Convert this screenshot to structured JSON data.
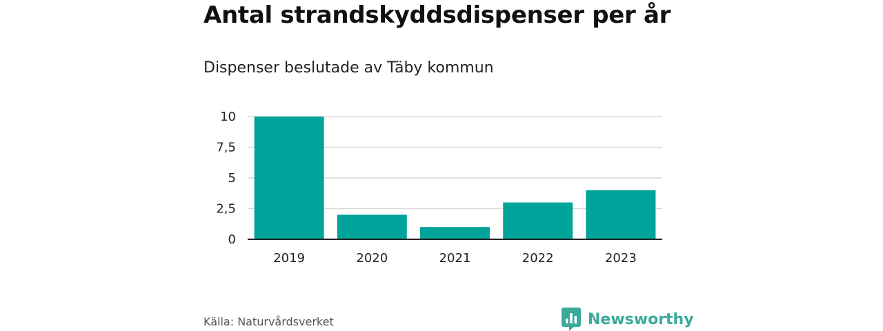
{
  "header": {
    "title": "Antal strandskyddsdispenser per år",
    "subtitle": "Dispenser beslutade av Täby kommun"
  },
  "footer": {
    "source": "Källa: Naturvårdsverket",
    "brand_name": "Newsworthy",
    "brand_icon": "newsworthy-logo-icon"
  },
  "colors": {
    "bar": "#00A49A",
    "brand": "#3AAA9B",
    "grid": "#d9d9d9",
    "axis": "#222222"
  },
  "chart_data": {
    "type": "bar",
    "title": "Antal strandskyddsdispenser per år",
    "subtitle": "Dispenser beslutade av Täby kommun",
    "categories": [
      "2019",
      "2020",
      "2021",
      "2022",
      "2023"
    ],
    "values": [
      10,
      2,
      1,
      3,
      4
    ],
    "ylim": [
      0,
      10
    ],
    "yticks": [
      0,
      2.5,
      5,
      7.5,
      10
    ],
    "ytick_labels": [
      "0",
      "2,5",
      "5",
      "7,5",
      "10"
    ],
    "xlabel": "",
    "ylabel": "",
    "grid": true,
    "legend": "none"
  }
}
